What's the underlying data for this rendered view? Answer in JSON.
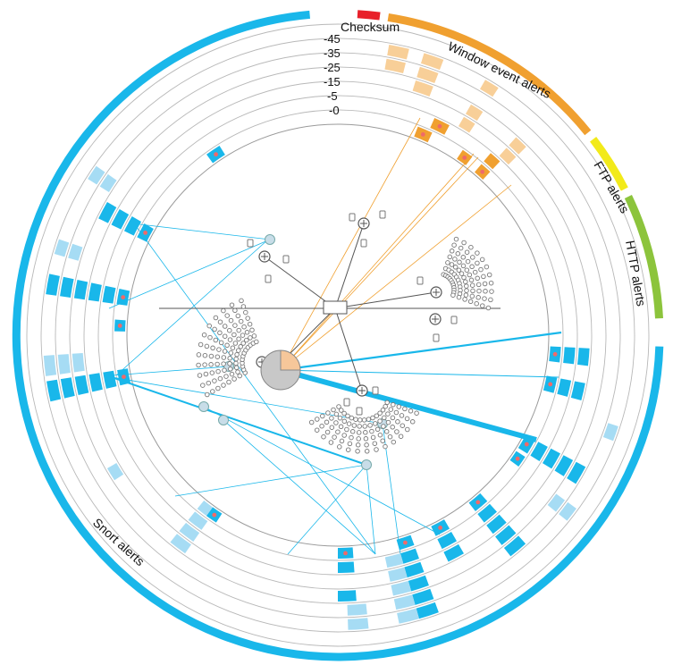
{
  "scale_labels": [
    "-45",
    "-35",
    "-25",
    "-15",
    "-5",
    "-0"
  ],
  "categories": [
    {
      "label": "Checksum",
      "color": "#e8202a"
    },
    {
      "label": "Window event alerts",
      "color": "#f0a030"
    },
    {
      "label": "FTP alerts",
      "color": "#f2ea1a"
    },
    {
      "label": "HTTP alerts",
      "color": "#8cc43c"
    },
    {
      "label": "Snort alerts",
      "color": "#19b7ea"
    }
  ],
  "colors": {
    "snort_strong": "#19b7ea",
    "snort_light": "#a6dcf4",
    "window_strong": "#f0a030",
    "window_light": "#f8cf98",
    "ring": "#b8b8b8",
    "hub_node": "#c8c8c8",
    "dot": "#ef6a6a"
  }
}
